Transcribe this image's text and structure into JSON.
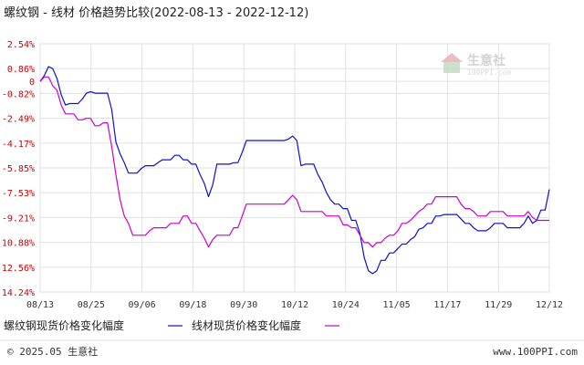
{
  "title_main": "螺纹钢 - 线材 价格趋势比较",
  "title_range": "(2022-08-13 - 2022-12-12)",
  "footer_left": "© 2025.05 生意社",
  "footer_right": "www.100PPI.com",
  "watermark": {
    "name": "生意社",
    "url": "100PPI.com"
  },
  "colors": {
    "series_a": "#1010cc",
    "series_b": "#cc00cc",
    "ytick": "#cc0000"
  },
  "chart_data": {
    "type": "line",
    "ylim": [
      -14.24,
      2.54
    ],
    "yticks": [
      "2.54%",
      "0.86%",
      "0",
      "-0.82%",
      "-2.49%",
      "-4.17%",
      "-5.85%",
      "-7.53%",
      "-9.21%",
      "-10.88%",
      "-12.56%",
      "-14.24%"
    ],
    "ytick_values": [
      2.54,
      0.86,
      0,
      -0.82,
      -2.49,
      -4.17,
      -5.85,
      -7.53,
      -9.21,
      -10.88,
      -12.56,
      -14.24
    ],
    "xticks": [
      "08/13",
      "08/25",
      "09/06",
      "09/18",
      "09/30",
      "10/12",
      "10/24",
      "11/05",
      "11/17",
      "11/29",
      "12/12"
    ],
    "xlim": [
      0,
      121
    ],
    "grid": true,
    "legend_position": "bottom",
    "series": [
      {
        "name": "螺纹钢现货价格变化幅度",
        "points": [
          [
            0,
            0
          ],
          [
            1,
            0.4
          ],
          [
            2,
            1
          ],
          [
            3,
            0.86
          ],
          [
            4,
            0.2
          ],
          [
            5,
            -0.9
          ],
          [
            6,
            -1.6
          ],
          [
            7,
            -1.5
          ],
          [
            8,
            -1.5
          ],
          [
            9,
            -1.5
          ],
          [
            10,
            -1.2
          ],
          [
            11,
            -0.8
          ],
          [
            12,
            -0.7
          ],
          [
            13,
            -0.8
          ],
          [
            14,
            -0.8
          ],
          [
            15,
            -0.8
          ],
          [
            16,
            -0.8
          ],
          [
            17,
            -1.9
          ],
          [
            18,
            -4.1
          ],
          [
            19,
            -4.9
          ],
          [
            20,
            -5.5
          ],
          [
            21,
            -6.2
          ],
          [
            22,
            -6.2
          ],
          [
            23,
            -6.2
          ],
          [
            24,
            -5.9
          ],
          [
            25,
            -5.7
          ],
          [
            26,
            -5.7
          ],
          [
            27,
            -5.7
          ],
          [
            28,
            -5.5
          ],
          [
            29,
            -5.3
          ],
          [
            30,
            -5.3
          ],
          [
            31,
            -5.3
          ],
          [
            32,
            -5.0
          ],
          [
            33,
            -5.0
          ],
          [
            34,
            -5.3
          ],
          [
            35,
            -5.3
          ],
          [
            36,
            -5.6
          ],
          [
            37,
            -5.6
          ],
          [
            38,
            -6.3
          ],
          [
            39,
            -6.9
          ],
          [
            40,
            -7.8
          ],
          [
            41,
            -7.0
          ],
          [
            42,
            -5.6
          ],
          [
            43,
            -5.6
          ],
          [
            44,
            -5.6
          ],
          [
            45,
            -5.6
          ],
          [
            46,
            -5.5
          ],
          [
            47,
            -5.5
          ],
          [
            48,
            -4.8
          ],
          [
            49,
            -4.0
          ],
          [
            50,
            -4.0
          ],
          [
            51,
            -4.0
          ],
          [
            52,
            -4.0
          ],
          [
            53,
            -4.0
          ],
          [
            54,
            -4.0
          ],
          [
            55,
            -4.0
          ],
          [
            56,
            -4.0
          ],
          [
            57,
            -4.0
          ],
          [
            58,
            -4.0
          ],
          [
            59,
            -3.9
          ],
          [
            60,
            -3.7
          ],
          [
            61,
            -4.0
          ],
          [
            62,
            -5.7
          ],
          [
            63,
            -5.6
          ],
          [
            64,
            -5.6
          ],
          [
            65,
            -5.6
          ],
          [
            66,
            -6.3
          ],
          [
            67,
            -6.8
          ],
          [
            68,
            -7.5
          ],
          [
            69,
            -8.0
          ],
          [
            70,
            -8.3
          ],
          [
            71,
            -8.3
          ],
          [
            72,
            -8.6
          ],
          [
            73,
            -8.6
          ],
          [
            74,
            -9.4
          ],
          [
            75,
            -9.4
          ],
          [
            76,
            -10.3
          ],
          [
            77,
            -11.9
          ],
          [
            78,
            -12.8
          ],
          [
            79,
            -13.0
          ],
          [
            80,
            -12.8
          ],
          [
            81,
            -12.1
          ],
          [
            82,
            -12.1
          ],
          [
            83,
            -11.6
          ],
          [
            84,
            -11.6
          ],
          [
            85,
            -11.3
          ],
          [
            86,
            -11.0
          ],
          [
            87,
            -11.0
          ],
          [
            88,
            -10.7
          ],
          [
            89,
            -10.5
          ],
          [
            90,
            -10.0
          ],
          [
            91,
            -9.9
          ],
          [
            92,
            -9.6
          ],
          [
            93,
            -9.6
          ],
          [
            94,
            -9.1
          ],
          [
            95,
            -9.1
          ],
          [
            96,
            -9.0
          ],
          [
            97,
            -9.0
          ],
          [
            98,
            -9.0
          ],
          [
            99,
            -9.0
          ],
          [
            100,
            -9.3
          ],
          [
            101,
            -9.6
          ],
          [
            102,
            -9.6
          ],
          [
            103,
            -9.9
          ],
          [
            104,
            -10.1
          ],
          [
            105,
            -10.1
          ],
          [
            106,
            -10.1
          ],
          [
            107,
            -9.9
          ],
          [
            108,
            -9.6
          ],
          [
            109,
            -9.6
          ],
          [
            110,
            -9.6
          ],
          [
            111,
            -9.9
          ],
          [
            112,
            -9.9
          ],
          [
            113,
            -9.9
          ],
          [
            114,
            -9.9
          ],
          [
            115,
            -9.6
          ],
          [
            116,
            -9.1
          ],
          [
            117,
            -9.6
          ],
          [
            118,
            -9.4
          ],
          [
            119,
            -8.7
          ],
          [
            120,
            -8.7
          ],
          [
            121,
            -7.3
          ]
        ]
      },
      {
        "name": "线材现货价格变化幅度",
        "points": [
          [
            0,
            0
          ],
          [
            1,
            0.3
          ],
          [
            2,
            0.3
          ],
          [
            3,
            -0.3
          ],
          [
            4,
            -0.6
          ],
          [
            5,
            -1.6
          ],
          [
            6,
            -2.2
          ],
          [
            7,
            -2.2
          ],
          [
            8,
            -2.2
          ],
          [
            9,
            -2.6
          ],
          [
            10,
            -2.6
          ],
          [
            11,
            -2.5
          ],
          [
            12,
            -2.5
          ],
          [
            13,
            -3.0
          ],
          [
            14,
            -3.0
          ],
          [
            15,
            -2.8
          ],
          [
            16,
            -2.8
          ],
          [
            17,
            -4.4
          ],
          [
            18,
            -6.3
          ],
          [
            19,
            -8.0
          ],
          [
            20,
            -9.1
          ],
          [
            21,
            -9.6
          ],
          [
            22,
            -10.4
          ],
          [
            23,
            -10.4
          ],
          [
            24,
            -10.4
          ],
          [
            25,
            -10.4
          ],
          [
            26,
            -10.1
          ],
          [
            27,
            -9.9
          ],
          [
            28,
            -9.9
          ],
          [
            29,
            -9.9
          ],
          [
            30,
            -9.9
          ],
          [
            31,
            -9.6
          ],
          [
            32,
            -9.6
          ],
          [
            33,
            -9.6
          ],
          [
            34,
            -9.1
          ],
          [
            35,
            -9.1
          ],
          [
            36,
            -9.6
          ],
          [
            37,
            -9.6
          ],
          [
            38,
            -10.1
          ],
          [
            39,
            -10.6
          ],
          [
            40,
            -11.2
          ],
          [
            41,
            -10.7
          ],
          [
            42,
            -10.4
          ],
          [
            43,
            -10.4
          ],
          [
            44,
            -10.4
          ],
          [
            45,
            -10.4
          ],
          [
            46,
            -9.9
          ],
          [
            47,
            -9.9
          ],
          [
            48,
            -9.1
          ],
          [
            49,
            -8.3
          ],
          [
            50,
            -8.3
          ],
          [
            51,
            -8.3
          ],
          [
            52,
            -8.3
          ],
          [
            53,
            -8.3
          ],
          [
            54,
            -8.3
          ],
          [
            55,
            -8.3
          ],
          [
            56,
            -8.3
          ],
          [
            57,
            -8.3
          ],
          [
            58,
            -8.3
          ],
          [
            59,
            -8.0
          ],
          [
            60,
            -7.7
          ],
          [
            61,
            -8.0
          ],
          [
            62,
            -8.8
          ],
          [
            63,
            -8.8
          ],
          [
            64,
            -8.8
          ],
          [
            65,
            -8.8
          ],
          [
            66,
            -8.8
          ],
          [
            67,
            -8.8
          ],
          [
            68,
            -9.1
          ],
          [
            69,
            -9.1
          ],
          [
            70,
            -9.1
          ],
          [
            71,
            -9.1
          ],
          [
            72,
            -9.7
          ],
          [
            73,
            -9.7
          ],
          [
            74,
            -9.9
          ],
          [
            75,
            -9.9
          ],
          [
            76,
            -10.4
          ],
          [
            77,
            -10.9
          ],
          [
            78,
            -10.9
          ],
          [
            79,
            -11.2
          ],
          [
            80,
            -10.9
          ],
          [
            81,
            -10.9
          ],
          [
            82,
            -10.6
          ],
          [
            83,
            -10.4
          ],
          [
            84,
            -10.4
          ],
          [
            85,
            -10.1
          ],
          [
            86,
            -9.6
          ],
          [
            87,
            -9.6
          ],
          [
            88,
            -9.4
          ],
          [
            89,
            -9.1
          ],
          [
            90,
            -8.8
          ],
          [
            91,
            -8.6
          ],
          [
            92,
            -8.3
          ],
          [
            93,
            -8.3
          ],
          [
            94,
            -7.8
          ],
          [
            95,
            -7.8
          ],
          [
            96,
            -7.8
          ],
          [
            97,
            -7.8
          ],
          [
            98,
            -7.8
          ],
          [
            99,
            -7.8
          ],
          [
            100,
            -8.3
          ],
          [
            101,
            -8.6
          ],
          [
            102,
            -8.6
          ],
          [
            103,
            -8.8
          ],
          [
            104,
            -9.1
          ],
          [
            105,
            -9.1
          ],
          [
            106,
            -9.1
          ],
          [
            107,
            -8.8
          ],
          [
            108,
            -8.8
          ],
          [
            109,
            -8.8
          ],
          [
            110,
            -8.8
          ],
          [
            111,
            -9.1
          ],
          [
            112,
            -9.1
          ],
          [
            113,
            -9.1
          ],
          [
            114,
            -9.1
          ],
          [
            115,
            -9.1
          ],
          [
            116,
            -8.8
          ],
          [
            117,
            -9.2
          ],
          [
            118,
            -9.4
          ],
          [
            119,
            -9.4
          ],
          [
            120,
            -9.4
          ],
          [
            121,
            -9.4
          ]
        ]
      }
    ]
  }
}
